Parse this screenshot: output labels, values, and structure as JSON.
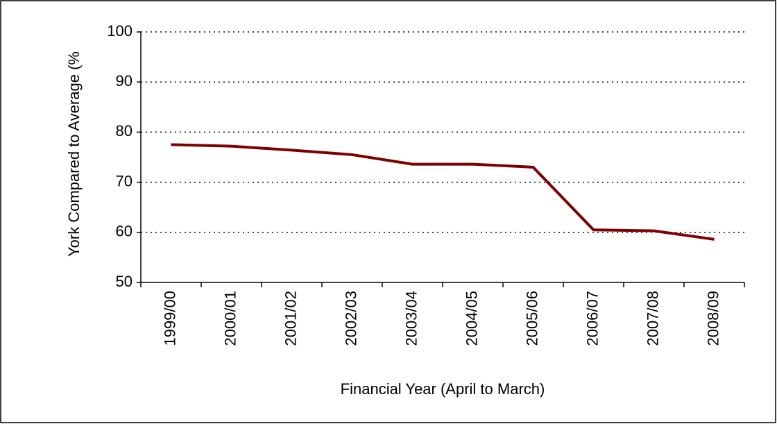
{
  "chart_data": {
    "type": "line",
    "y_label": "York Compared to Average (%",
    "x_label": "Financial Year (April to March)",
    "categories": [
      "1999/00",
      "2000/01",
      "2001/02",
      "2002/03",
      "2003/04",
      "2004/05",
      "2005/06",
      "2006/07",
      "2007/08",
      "2008/09"
    ],
    "values": [
      77.5,
      77.2,
      76.4,
      75.5,
      73.6,
      73.6,
      73.0,
      60.5,
      60.3,
      58.6
    ],
    "color": "#7f0000",
    "ylim": [
      50,
      100
    ],
    "yticks": [
      50,
      60,
      70,
      80,
      90,
      100
    ],
    "grid": true
  }
}
